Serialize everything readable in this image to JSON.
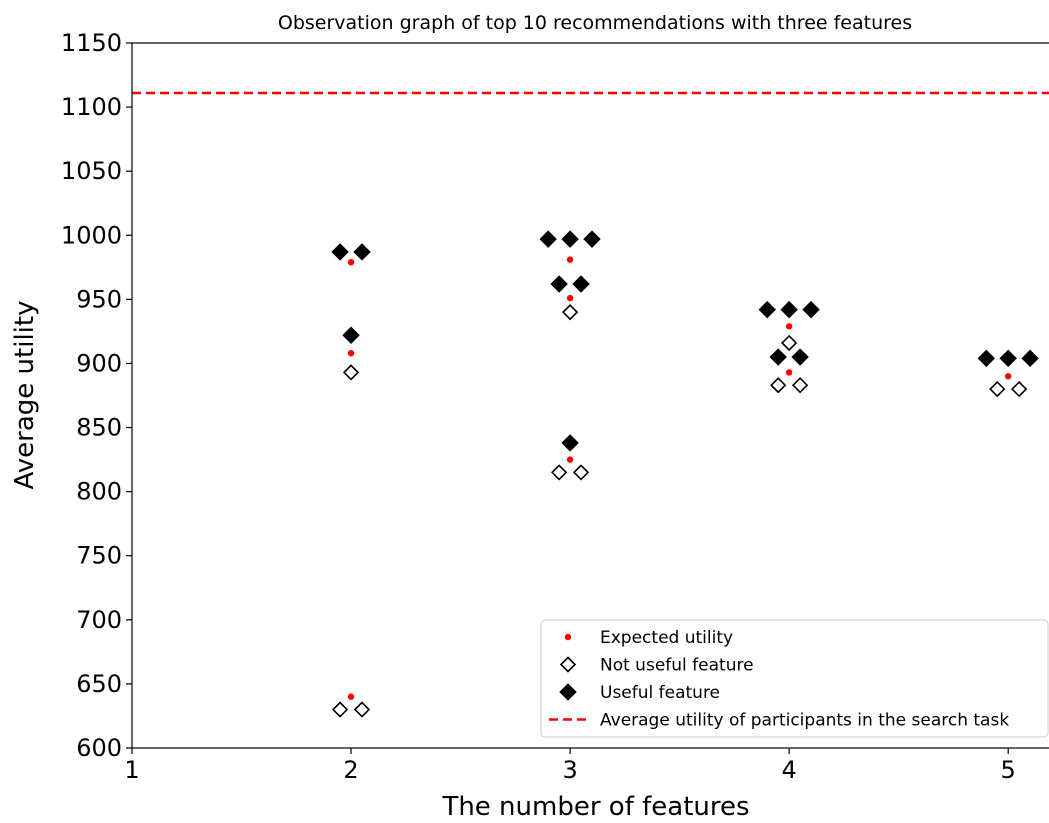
{
  "chart_data": {
    "type": "scatter",
    "title": "Observation graph of top 10 recommendations with three features",
    "xlabel": "The number of features",
    "ylabel": "Average utility",
    "xlim": [
      1,
      5.2
    ],
    "ylim": [
      600,
      1150
    ],
    "xticks": [
      "1",
      "2",
      "3",
      "4",
      "5"
    ],
    "yticks": [
      "600",
      "650",
      "700",
      "750",
      "800",
      "850",
      "900",
      "950",
      "1000",
      "1050",
      "1100",
      "1150"
    ],
    "grid": false,
    "legend_position": "lower-right",
    "reference_line": {
      "name": "Average utility of participants in the search task",
      "y": 1111,
      "color": "#ff0000",
      "style": "dashed"
    },
    "series": [
      {
        "name": "Expected utility",
        "marker": "dot",
        "color": "#ff0000",
        "points": [
          {
            "x": 2,
            "y": 979
          },
          {
            "x": 2,
            "y": 908
          },
          {
            "x": 2,
            "y": 640
          },
          {
            "x": 3,
            "y": 981
          },
          {
            "x": 3,
            "y": 951
          },
          {
            "x": 3,
            "y": 825
          },
          {
            "x": 4,
            "y": 929
          },
          {
            "x": 4,
            "y": 893
          },
          {
            "x": 5,
            "y": 890
          }
        ]
      },
      {
        "name": "Not useful feature",
        "marker": "open-diamond",
        "color": "#000000",
        "points": [
          {
            "x": 2,
            "y": 893
          },
          {
            "x": 1.95,
            "y": 630
          },
          {
            "x": 2.05,
            "y": 630
          },
          {
            "x": 3,
            "y": 940
          },
          {
            "x": 2.95,
            "y": 815
          },
          {
            "x": 3.05,
            "y": 815
          },
          {
            "x": 4,
            "y": 916
          },
          {
            "x": 3.95,
            "y": 883
          },
          {
            "x": 4.05,
            "y": 883
          },
          {
            "x": 4.95,
            "y": 880
          },
          {
            "x": 5.05,
            "y": 880
          }
        ]
      },
      {
        "name": "Useful feature",
        "marker": "filled-diamond",
        "color": "#000000",
        "points": [
          {
            "x": 1.95,
            "y": 987
          },
          {
            "x": 2.05,
            "y": 987
          },
          {
            "x": 2,
            "y": 922
          },
          {
            "x": 2.9,
            "y": 997
          },
          {
            "x": 3,
            "y": 997
          },
          {
            "x": 3.1,
            "y": 997
          },
          {
            "x": 2.95,
            "y": 962
          },
          {
            "x": 3.05,
            "y": 962
          },
          {
            "x": 3,
            "y": 838
          },
          {
            "x": 3.9,
            "y": 942
          },
          {
            "x": 4,
            "y": 942
          },
          {
            "x": 4.1,
            "y": 942
          },
          {
            "x": 3.95,
            "y": 905
          },
          {
            "x": 4.05,
            "y": 905
          },
          {
            "x": 4.9,
            "y": 904
          },
          {
            "x": 5,
            "y": 904
          },
          {
            "x": 5.1,
            "y": 904
          }
        ]
      }
    ]
  }
}
